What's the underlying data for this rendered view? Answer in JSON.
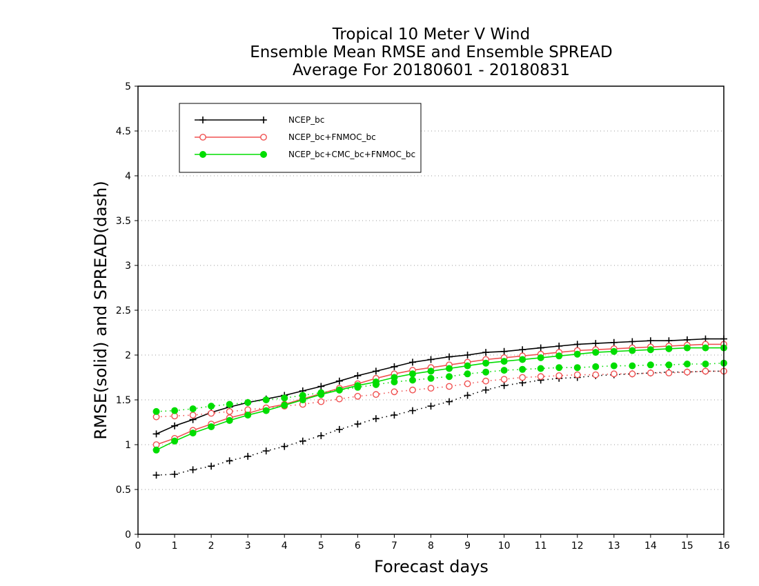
{
  "chart_data": {
    "type": "line",
    "title": [
      "Tropical 10 Meter V Wind",
      "Ensemble Mean RMSE and Ensemble SPREAD",
      "Average For 20180601 - 20180831"
    ],
    "xlabel": "Forecast days",
    "ylabel": "RMSE(solid) and SPREAD(dash)",
    "xlim": [
      0,
      16
    ],
    "ylim": [
      0,
      5
    ],
    "xticks": [
      0,
      1,
      2,
      3,
      4,
      5,
      6,
      7,
      8,
      9,
      10,
      11,
      12,
      13,
      14,
      15,
      16
    ],
    "yticks": [
      0,
      0.5,
      1,
      1.5,
      2,
      2.5,
      3,
      3.5,
      4,
      4.5,
      5
    ],
    "ytick_labels": [
      "0",
      "0.5",
      "1",
      "1.5",
      "2",
      "2.5",
      "3",
      "3.5",
      "4",
      "4.5",
      "5"
    ],
    "grid": "horizontal dotted",
    "legend_position": "top-left",
    "x": [
      0.5,
      1,
      1.5,
      2,
      2.5,
      3,
      3.5,
      4,
      4.5,
      5,
      5.5,
      6,
      6.5,
      7,
      7.5,
      8,
      8.5,
      9,
      9.5,
      10,
      10.5,
      11,
      11.5,
      12,
      12.5,
      13,
      13.5,
      14,
      14.5,
      15,
      15.5,
      16
    ],
    "series": [
      {
        "name": "NCEP_bc",
        "color": "#000000",
        "marker": "plus",
        "rmse": [
          1.12,
          1.21,
          1.28,
          1.36,
          1.42,
          1.47,
          1.51,
          1.55,
          1.6,
          1.65,
          1.71,
          1.77,
          1.82,
          1.87,
          1.92,
          1.95,
          1.98,
          2.0,
          2.03,
          2.04,
          2.06,
          2.08,
          2.1,
          2.12,
          2.13,
          2.14,
          2.15,
          2.16,
          2.16,
          2.17,
          2.18,
          2.18
        ],
        "spread": [
          0.66,
          0.67,
          0.72,
          0.76,
          0.82,
          0.87,
          0.93,
          0.98,
          1.04,
          1.1,
          1.17,
          1.23,
          1.29,
          1.33,
          1.38,
          1.43,
          1.48,
          1.55,
          1.61,
          1.66,
          1.69,
          1.72,
          1.74,
          1.75,
          1.77,
          1.78,
          1.79,
          1.8,
          1.81,
          1.81,
          1.82,
          1.82
        ]
      },
      {
        "name": "NCEP_bc+FNMOC_bc",
        "color": "#f05050",
        "marker": "open-circle",
        "rmse": [
          1.0,
          1.07,
          1.16,
          1.23,
          1.3,
          1.35,
          1.41,
          1.45,
          1.51,
          1.57,
          1.63,
          1.68,
          1.74,
          1.79,
          1.83,
          1.86,
          1.89,
          1.92,
          1.95,
          1.97,
          1.99,
          2.01,
          2.03,
          2.05,
          2.06,
          2.07,
          2.08,
          2.09,
          2.1,
          2.11,
          2.12,
          2.12
        ],
        "spread": [
          1.31,
          1.32,
          1.33,
          1.35,
          1.37,
          1.39,
          1.41,
          1.43,
          1.45,
          1.48,
          1.51,
          1.54,
          1.56,
          1.59,
          1.61,
          1.63,
          1.65,
          1.68,
          1.71,
          1.73,
          1.75,
          1.76,
          1.77,
          1.78,
          1.78,
          1.79,
          1.79,
          1.8,
          1.8,
          1.81,
          1.82,
          1.82
        ]
      },
      {
        "name": "NCEP_bc+CMC_bc+FNMOC_bc",
        "color": "#00dd00",
        "marker": "filled-circle",
        "rmse": [
          0.94,
          1.04,
          1.13,
          1.2,
          1.27,
          1.33,
          1.38,
          1.44,
          1.5,
          1.56,
          1.61,
          1.66,
          1.7,
          1.75,
          1.79,
          1.82,
          1.85,
          1.88,
          1.91,
          1.93,
          1.95,
          1.97,
          1.99,
          2.01,
          2.03,
          2.04,
          2.05,
          2.06,
          2.07,
          2.08,
          2.08,
          2.08
        ],
        "spread": [
          1.37,
          1.38,
          1.4,
          1.43,
          1.45,
          1.47,
          1.5,
          1.52,
          1.55,
          1.58,
          1.61,
          1.64,
          1.67,
          1.7,
          1.72,
          1.74,
          1.76,
          1.79,
          1.81,
          1.83,
          1.84,
          1.85,
          1.86,
          1.86,
          1.87,
          1.88,
          1.88,
          1.89,
          1.89,
          1.9,
          1.9,
          1.91
        ]
      }
    ]
  }
}
